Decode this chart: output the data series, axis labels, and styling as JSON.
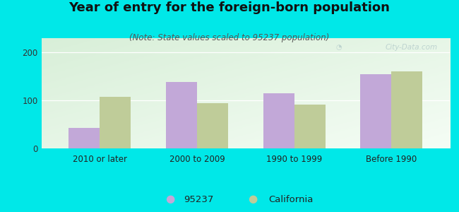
{
  "title": "Year of entry for the foreign-born population",
  "subtitle": "(Note: State values scaled to 95237 population)",
  "categories": [
    "2010 or later",
    "2000 to 2009",
    "1990 to 1999",
    "Before 1990"
  ],
  "values_95237": [
    43,
    138,
    115,
    155
  ],
  "values_california": [
    108,
    95,
    92,
    160
  ],
  "bar_color_95237": "#c2a8d8",
  "bar_color_california": "#bfcc99",
  "background_color": "#00e8e8",
  "plot_bg_gradient_topleft": "#d8efd8",
  "plot_bg_gradient_bottomright": "#f5fdf5",
  "ylim": [
    0,
    230
  ],
  "yticks": [
    0,
    100,
    200
  ],
  "legend_labels": [
    "95237",
    "California"
  ],
  "title_fontsize": 13,
  "subtitle_fontsize": 8.5,
  "tick_fontsize": 8.5,
  "legend_fontsize": 9.5,
  "bar_width": 0.32,
  "watermark_text": "City-Data.com"
}
